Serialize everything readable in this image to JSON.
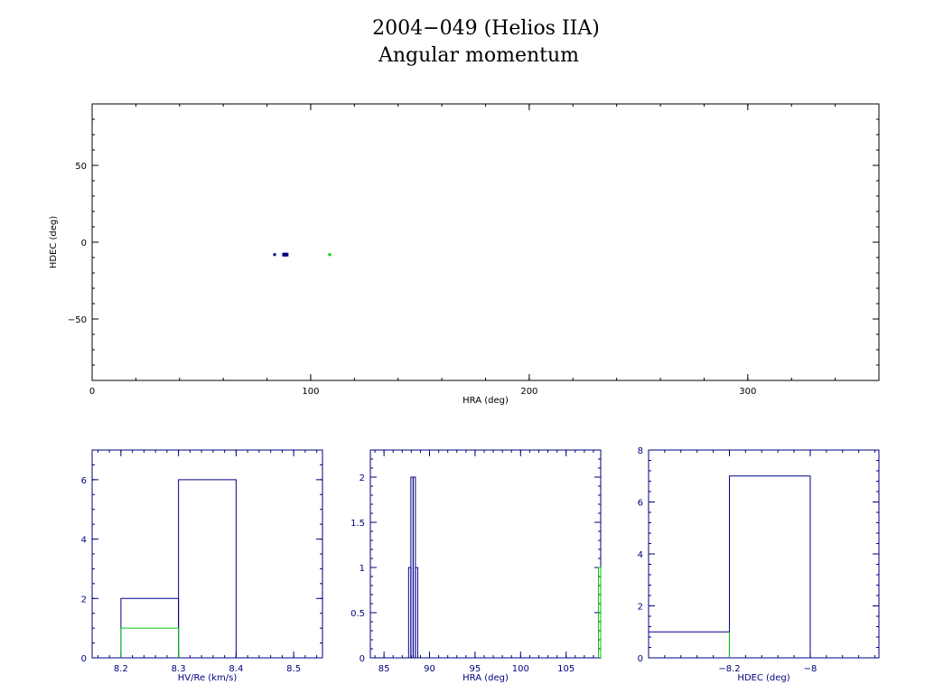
{
  "title": {
    "line1": "2004−049 (Helios IIA)",
    "line2": "Angular momentum"
  },
  "colors": {
    "top_axes": "#000000",
    "hist_axes": "#00007f",
    "series_blue": "#00008b",
    "series_green": "#00cc00"
  },
  "chart_data": [
    {
      "id": "sky",
      "type": "scatter",
      "xlabel": "HRA (deg)",
      "ylabel": "HDEC (deg)",
      "xlim": [
        0,
        360
      ],
      "ylim": [
        -90,
        90
      ],
      "xticks": [
        0,
        100,
        200,
        300
      ],
      "yticks": [
        -50,
        0,
        50
      ],
      "series": [
        {
          "color": "blue",
          "x": [
            83.5,
            87.8,
            88.4,
            89.0
          ],
          "y": [
            -8.1,
            -8.1,
            -8.1,
            -8.1
          ]
        },
        {
          "color": "green",
          "x": [
            108.7
          ],
          "y": [
            -8.1
          ]
        }
      ]
    },
    {
      "id": "hist_v",
      "type": "bar",
      "xlabel": "HV/Re (km/s)",
      "xlim": [
        8.15,
        8.55
      ],
      "ylim": [
        0,
        7
      ],
      "xticks": [
        8.2,
        8.3,
        8.4,
        8.5
      ],
      "yticks": [
        0,
        2,
        4,
        6
      ],
      "series": [
        {
          "color": "blue",
          "bins": [
            [
              8.2,
              8.3,
              2
            ],
            [
              8.3,
              8.4,
              6
            ]
          ]
        },
        {
          "color": "green",
          "bins": [
            [
              8.2,
              8.3,
              1
            ]
          ]
        }
      ]
    },
    {
      "id": "hist_ra",
      "type": "bar",
      "xlabel": "HRA (deg)",
      "xlim": [
        83.5,
        108.8
      ],
      "ylim": [
        0,
        2.3
      ],
      "xticks": [
        85,
        90,
        95,
        100,
        105
      ],
      "yticks": [
        0,
        0.5,
        1,
        1.5,
        2
      ],
      "series": [
        {
          "color": "blue",
          "bins": [
            [
              87.7,
              87.95,
              1
            ],
            [
              87.95,
              88.2,
              2
            ],
            [
              88.2,
              88.45,
              2
            ],
            [
              88.45,
              88.7,
              1
            ]
          ]
        },
        {
          "color": "green",
          "bins": [
            [
              108.55,
              108.8,
              1
            ]
          ]
        }
      ]
    },
    {
      "id": "hist_dec",
      "type": "bar",
      "xlabel": "HDEC (deg)",
      "xlim": [
        -8.4,
        -7.83
      ],
      "ylim": [
        0,
        8
      ],
      "xticks": [
        -8.2,
        -8
      ],
      "yticks": [
        0,
        2,
        4,
        6,
        8
      ],
      "series": [
        {
          "color": "blue",
          "bins": [
            [
              -8.4,
              -8.2,
              1
            ],
            [
              -8.2,
              -8.0,
              7
            ]
          ]
        },
        {
          "color": "green",
          "bins": [
            [
              -8.2,
              -8.2,
              1
            ]
          ]
        }
      ]
    }
  ]
}
